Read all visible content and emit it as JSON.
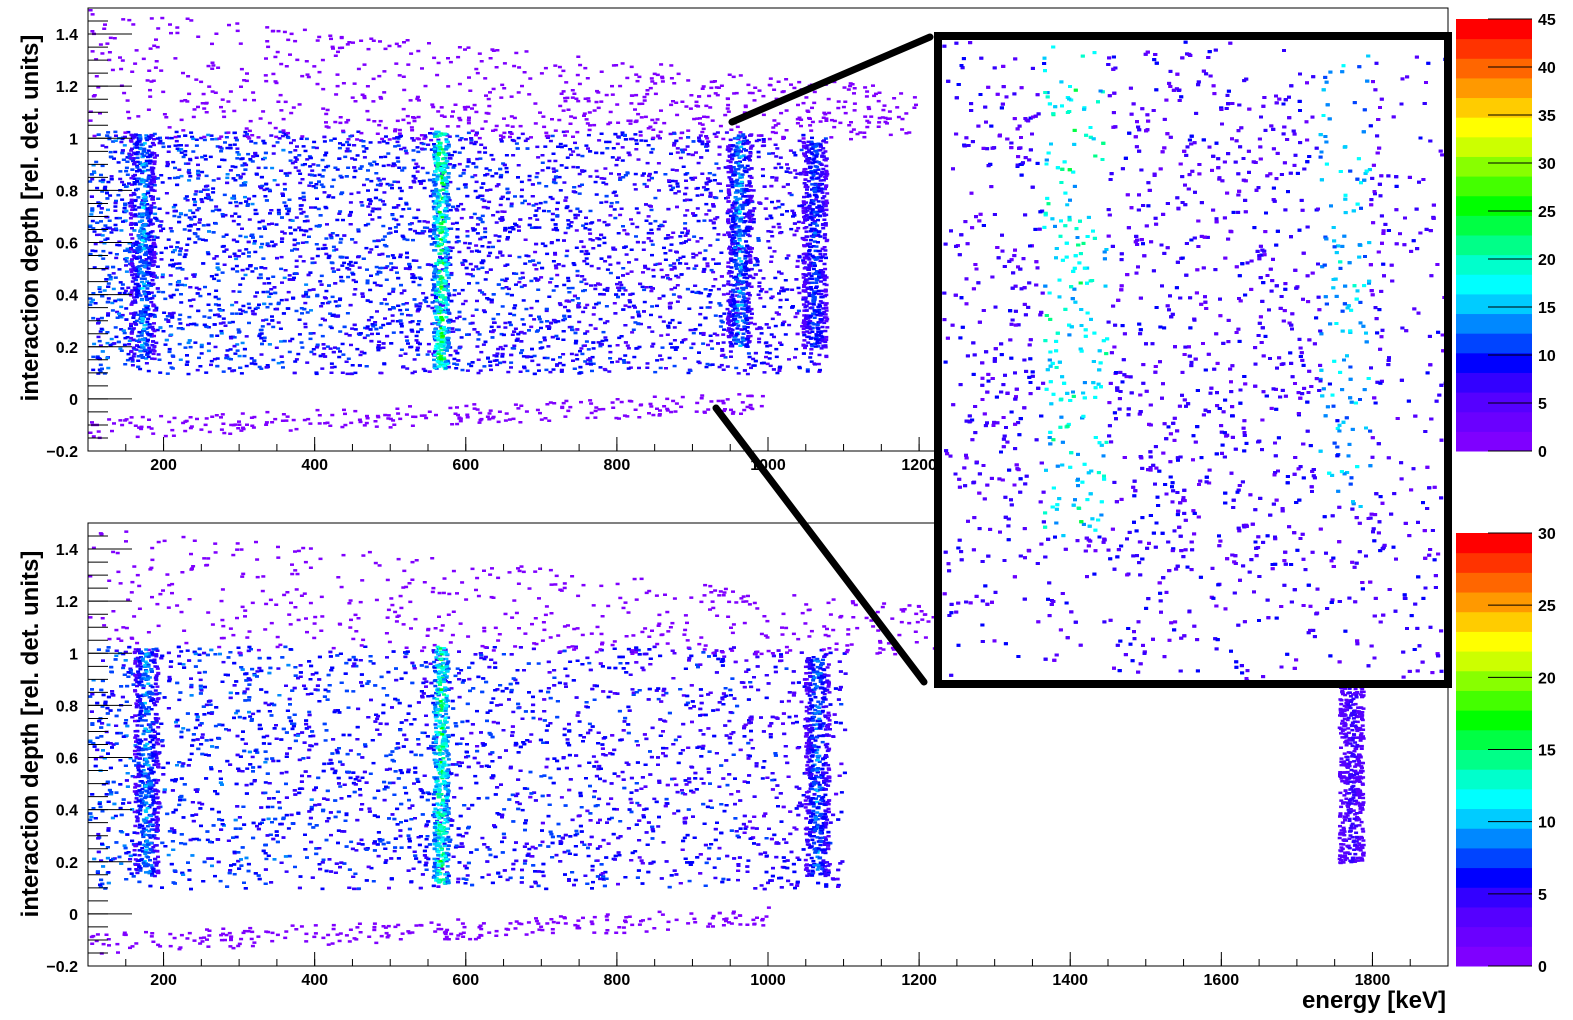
{
  "chart_data": [
    {
      "type": "heatmap",
      "panel": "top",
      "xlabel": "",
      "ylabel": "interaction depth [rel. det. units]",
      "xlim": [
        100,
        1900
      ],
      "ylim": [
        -0.2,
        1.5
      ],
      "x_ticks": [
        "200",
        "400",
        "600",
        "800",
        "1000",
        "1200"
      ],
      "y_ticks": [
        "−0.2",
        "0",
        "0.2",
        "0.4",
        "0.6",
        "0.8",
        "1",
        "1.2",
        "1.4"
      ],
      "z_range": [
        0,
        45
      ],
      "z_ticks": [
        "0",
        "5",
        "10",
        "15",
        "20",
        "25",
        "30",
        "35",
        "40",
        "45"
      ],
      "main_band": {
        "x_range": [
          100,
          1075
        ],
        "y_range": [
          0.1,
          1.03
        ],
        "count_level": 2
      },
      "lines": [
        {
          "energy": 170,
          "y_range": [
            0.15,
            1.02
          ],
          "peak_count": 12
        },
        {
          "energy": 565,
          "y_range": [
            0.12,
            1.03
          ],
          "peak_count": 24
        },
        {
          "energy": 960,
          "y_range": [
            0.2,
            1.02
          ],
          "peak_count": 12
        },
        {
          "energy": 1060,
          "y_range": [
            0.2,
            1.0
          ],
          "peak_count": 8
        }
      ]
    },
    {
      "type": "heatmap",
      "panel": "bottom",
      "xlabel": "energy [keV]",
      "ylabel": "interaction depth [rel. det. units]",
      "xlim": [
        100,
        1900
      ],
      "ylim": [
        -0.2,
        1.5
      ],
      "x_ticks": [
        "200",
        "400",
        "600",
        "800",
        "1000",
        "1200",
        "1400",
        "1600",
        "1800"
      ],
      "y_ticks": [
        "−0.2",
        "0",
        "0.2",
        "0.4",
        "0.6",
        "0.8",
        "1",
        "1.2",
        "1.4"
      ],
      "z_range": [
        0,
        30
      ],
      "z_ticks": [
        "0",
        "5",
        "10",
        "15",
        "20",
        "25",
        "30"
      ],
      "main_band": {
        "x_range": [
          100,
          1100
        ],
        "y_range": [
          0.1,
          1.03
        ],
        "count_level": 2
      },
      "lines": [
        {
          "energy": 175,
          "y_range": [
            0.15,
            1.02
          ],
          "peak_count": 12
        },
        {
          "energy": 565,
          "y_range": [
            0.12,
            1.03
          ],
          "peak_count": 22
        },
        {
          "energy": 1063,
          "y_range": [
            0.15,
            1.0
          ],
          "peak_count": 10
        },
        {
          "energy": 1770,
          "y_range": [
            0.2,
            0.9
          ],
          "peak_count": 2
        }
      ]
    }
  ],
  "inset": {
    "description_zoom_of": "top panel around 920-1080 keV",
    "energy_range": [
      920,
      1080
    ],
    "depth_range": [
      0.0,
      1.1
    ]
  },
  "colors": {
    "palette": [
      "#7f00ff",
      "#6a00ff",
      "#5500ff",
      "#3300ff",
      "#0000ff",
      "#0044ff",
      "#0088ff",
      "#00ccff",
      "#00ffff",
      "#00ffcc",
      "#00ff88",
      "#00ff44",
      "#00ff00",
      "#44ff00",
      "#88ff00",
      "#ccff00",
      "#ffff00",
      "#ffcc00",
      "#ff9900",
      "#ff6600",
      "#ff3300",
      "#ff0000"
    ],
    "frame": "#000000",
    "background": "#ffffff"
  }
}
